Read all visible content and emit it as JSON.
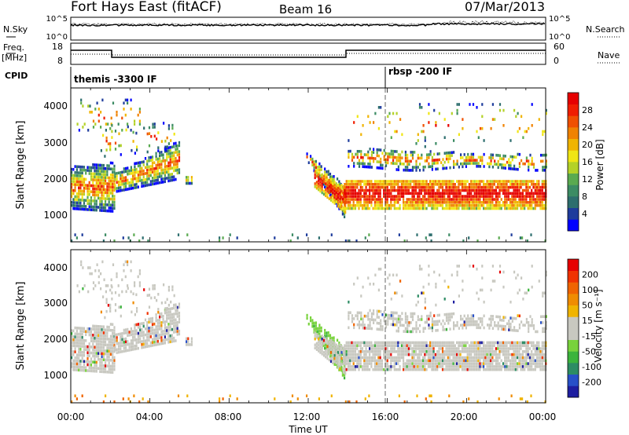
{
  "header": {
    "title": "Fort Hays East (fitACF)",
    "beam": "Beam 16",
    "date": "07/Mar/2013"
  },
  "noise_panel": {
    "left_label": "N.Sky",
    "right_label": "N.Search",
    "ticks_left": [
      "10^5",
      "10^0"
    ],
    "ticks_right": [
      "10^5",
      "10^0"
    ]
  },
  "freq_panel": {
    "left_label_1": "Freq.",
    "left_label_2": "[MHz]",
    "right_label": "Nave",
    "ticks_left": [
      "18",
      "8"
    ],
    "ticks_right": [
      "60",
      "0"
    ]
  },
  "cpid_panel": {
    "label": "CPID",
    "modes": [
      "themis -3300 IF",
      "rbsp -200 IF"
    ]
  },
  "power_panel": {
    "ylabel": "Slant Range [km]",
    "yticks": [
      "4000",
      "3000",
      "2000",
      "1000"
    ],
    "colorbar_label": "Power [dB]",
    "colorbar_ticks": [
      "28",
      "24",
      "20",
      "16",
      "12",
      "8",
      "4"
    ],
    "colors": [
      "#0000ff",
      "#1e3c9c",
      "#2d6e6e",
      "#3c8c64",
      "#5aaa50",
      "#b4d228",
      "#f0e614",
      "#f0b400",
      "#f08200",
      "#f05000",
      "#f01e00",
      "#e60000"
    ]
  },
  "velocity_panel": {
    "ylabel": "Slant Range [km]",
    "yticks": [
      "4000",
      "3000",
      "2000",
      "1000"
    ],
    "colorbar_label": "Velocity [m s⁻¹]",
    "colorbar_ticks": [
      "200",
      "100",
      "50",
      "15",
      "-15",
      "-50",
      "-100",
      "-200"
    ],
    "colors": [
      "#1e1ea0",
      "#2850c8",
      "#2d8c64",
      "#3cb43c",
      "#78d23c",
      "#c8c8c0",
      "#c8c8c0",
      "#f0b400",
      "#f08c00",
      "#f06400",
      "#f03200",
      "#e60000"
    ]
  },
  "xaxis": {
    "label": "Time UT",
    "ticks": [
      "00:00",
      "04:00",
      "08:00",
      "12:00",
      "16:00",
      "20:00",
      "00:00"
    ]
  }
}
